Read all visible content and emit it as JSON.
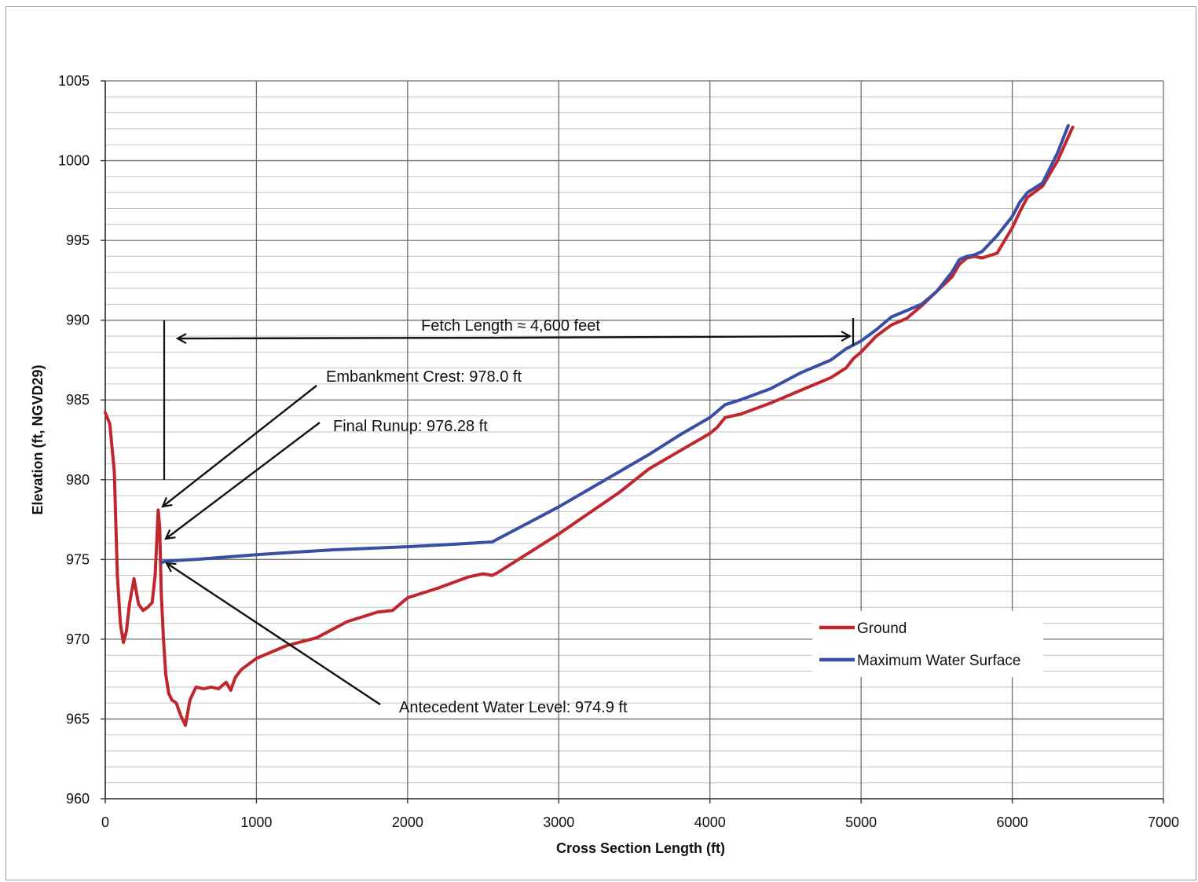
{
  "chart_data": {
    "type": "line",
    "title": "",
    "xlabel": "Cross Section Length (ft)",
    "ylabel": "Elevation (ft, NGVD29)",
    "xlim": [
      0,
      7000
    ],
    "ylim": [
      960,
      1005
    ],
    "xticks": [
      0,
      1000,
      2000,
      3000,
      4000,
      5000,
      6000,
      7000
    ],
    "yticks": [
      960,
      965,
      970,
      975,
      980,
      985,
      990,
      995,
      1000,
      1005
    ],
    "xtick_labels": [
      "0",
      "1000",
      "2000",
      "3000",
      "4000",
      "5000",
      "6000",
      "7000"
    ],
    "ytick_labels": [
      "960",
      "965",
      "970",
      "975",
      "980",
      "985",
      "990",
      "995",
      "1000",
      "1005"
    ],
    "grid": true,
    "legend_position": "right, lower-middle",
    "series": [
      {
        "name": "Ground",
        "color": "#c0272d",
        "x": [
          0,
          30,
          60,
          80,
          100,
          120,
          140,
          160,
          190,
          220,
          250,
          280,
          310,
          330,
          350,
          360,
          370,
          385,
          400,
          420,
          440,
          470,
          500,
          530,
          560,
          600,
          650,
          700,
          750,
          800,
          830,
          860,
          900,
          1000,
          1200,
          1400,
          1500,
          1600,
          1800,
          1900,
          2000,
          2200,
          2400,
          2500,
          2560,
          2600,
          2800,
          3000,
          3200,
          3400,
          3600,
          3800,
          4000,
          4050,
          4100,
          4150,
          4200,
          4400,
          4600,
          4800,
          4900,
          4950,
          5000,
          5100,
          5200,
          5300,
          5400,
          5500,
          5600,
          5650,
          5700,
          5750,
          5800,
          5900,
          6000,
          6050,
          6100,
          6200,
          6300,
          6400
        ],
        "y": [
          984.2,
          983.5,
          980.5,
          974,
          971,
          969.8,
          970.5,
          972.2,
          973.8,
          972.2,
          971.8,
          972.0,
          972.3,
          974,
          978.1,
          977.0,
          973,
          970,
          967.8,
          966.6,
          966.2,
          966.0,
          965.2,
          964.6,
          966.2,
          967,
          966.9,
          967.0,
          966.9,
          967.3,
          966.8,
          967.6,
          968.1,
          968.8,
          969.6,
          970.1,
          970.6,
          971.1,
          971.7,
          971.8,
          972.6,
          973.2,
          973.9,
          974.1,
          974.0,
          974.2,
          975.4,
          976.6,
          977.9,
          979.2,
          980.7,
          981.8,
          982.9,
          983.3,
          983.9,
          984.0,
          984.1,
          984.8,
          985.6,
          986.4,
          987.0,
          987.6,
          988.0,
          989.0,
          989.7,
          990.1,
          990.9,
          991.8,
          992.7,
          993.5,
          993.9,
          994.0,
          993.9,
          994.2,
          995.8,
          996.8,
          997.7,
          998.4,
          1000.0,
          1002.1
        ]
      },
      {
        "name": "Maximum Water Surface",
        "color": "#3a4fa3",
        "x": [
          370,
          400,
          600,
          1000,
          1500,
          2000,
          2300,
          2560,
          2600,
          2800,
          3000,
          3200,
          3400,
          3600,
          3800,
          4000,
          4100,
          4200,
          4400,
          4600,
          4800,
          4900,
          5000,
          5100,
          5200,
          5300,
          5400,
          5500,
          5600,
          5650,
          5700,
          5750,
          5800,
          5900,
          6000,
          6050,
          6100,
          6200,
          6300,
          6370
        ],
        "y": [
          974.8,
          974.9,
          975.0,
          975.3,
          975.6,
          975.8,
          975.95,
          976.1,
          976.3,
          977.3,
          978.3,
          979.4,
          980.5,
          981.6,
          982.8,
          983.9,
          984.7,
          985.0,
          985.7,
          986.7,
          987.5,
          988.2,
          988.7,
          989.4,
          990.2,
          990.6,
          991.0,
          991.8,
          993.0,
          993.8,
          994.0,
          994.1,
          994.3,
          995.3,
          996.5,
          997.4,
          998.0,
          998.6,
          1000.5,
          1002.2
        ]
      }
    ],
    "annotations": [
      {
        "text": "Fetch Length ≈ 4,600 feet"
      },
      {
        "text": "Embankment Crest: 978.0 ft"
      },
      {
        "text": "Final Runup: 976.28 ft"
      },
      {
        "text": "Antecedent Water Level: 974.9 ft"
      }
    ]
  }
}
